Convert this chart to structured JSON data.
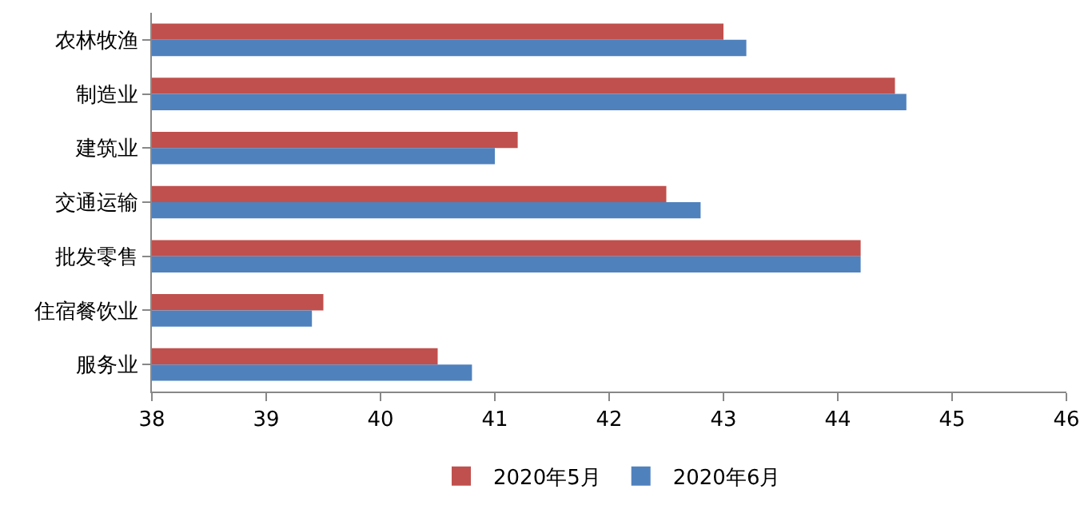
{
  "chart_data": {
    "type": "bar",
    "orientation": "horizontal",
    "categories": [
      "农林牧渔",
      "制造业",
      "建筑业",
      "交通运输",
      "批发零售",
      "住宿餐饮业",
      "服务业"
    ],
    "series": [
      {
        "name": "2020年5月",
        "color": "#c0504d",
        "values": [
          43.0,
          44.5,
          41.2,
          42.5,
          44.2,
          39.5,
          40.5
        ]
      },
      {
        "name": "2020年6月",
        "color": "#4f81bd",
        "values": [
          43.2,
          44.6,
          41.0,
          42.8,
          44.2,
          39.4,
          40.8
        ]
      }
    ],
    "xlim": [
      38,
      46
    ],
    "xticks": [
      38,
      39,
      40,
      41,
      42,
      43,
      44,
      45,
      46
    ],
    "legend": "bottom"
  }
}
